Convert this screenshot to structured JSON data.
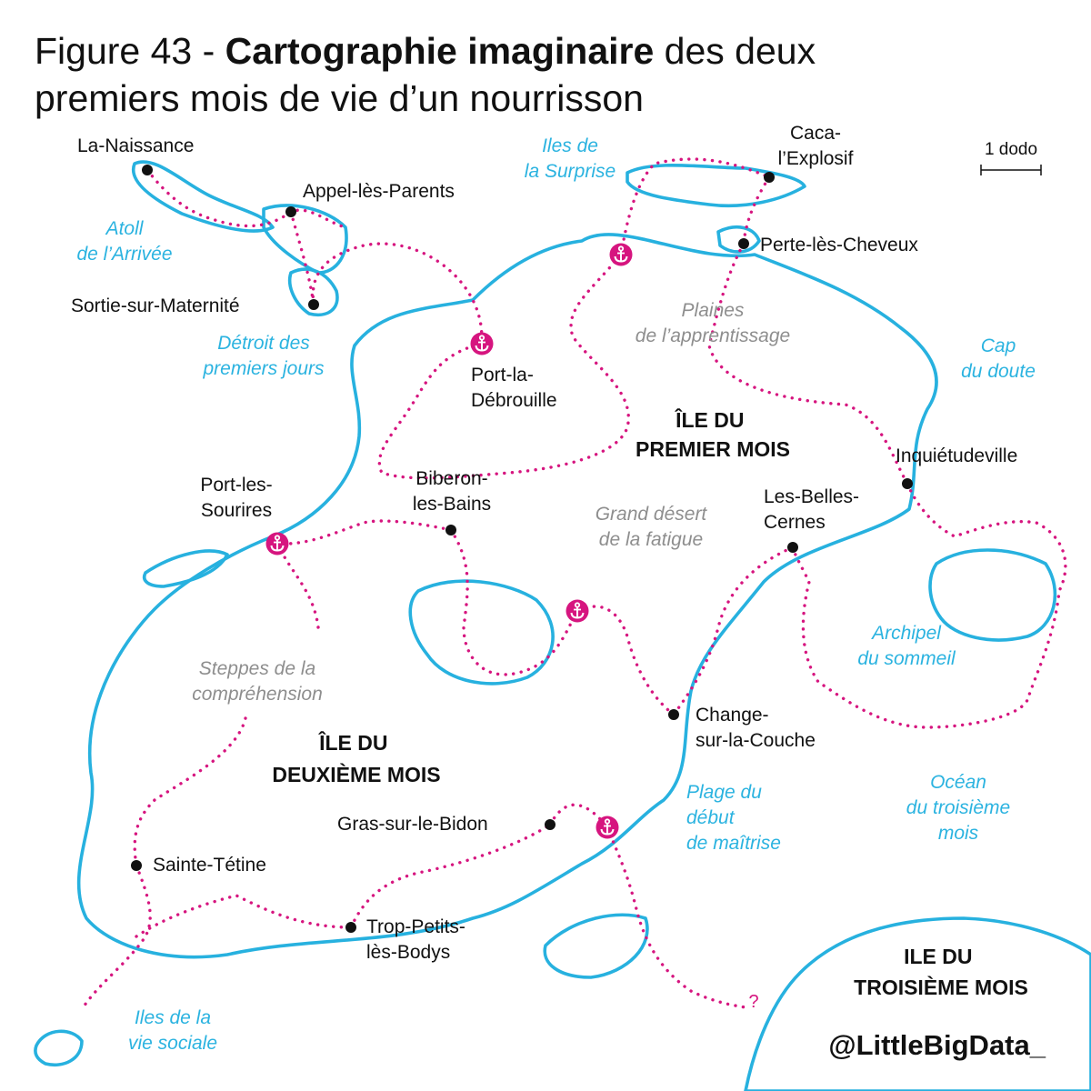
{
  "title": {
    "prefix": "Figure 43 - ",
    "bold": "Cartographie imaginaire",
    "rest": " des deux premiers mois de vie d’un nourrisson"
  },
  "scale": {
    "label": "1 dodo"
  },
  "islands": {
    "first": [
      "ÎLE DU",
      "PREMIER MOIS"
    ],
    "second": [
      "ÎLE DU",
      "DEUXIÈME MOIS"
    ],
    "third": [
      "ILE DU",
      "TROISIÈME MOIS"
    ]
  },
  "places": [
    {
      "id": "la-naissance",
      "lines": [
        "La-Naissance"
      ],
      "marker": "dot"
    },
    {
      "id": "appel-les-parents",
      "lines": [
        "Appel-lès-Parents"
      ],
      "marker": "dot"
    },
    {
      "id": "sortie-sur-maternite",
      "lines": [
        "Sortie-sur-Maternité"
      ],
      "marker": "dot"
    },
    {
      "id": "port-la-debrouille",
      "lines": [
        "Port-la-",
        "Débrouille"
      ],
      "marker": "port"
    },
    {
      "id": "caca-l-explosif",
      "lines": [
        "Caca-",
        "l’Explosif"
      ],
      "marker": "dot"
    },
    {
      "id": "perte-les-cheveux",
      "lines": [
        "Perte-lès-Cheveux"
      ],
      "marker": "dot"
    },
    {
      "id": "inquietudeville",
      "lines": [
        "Inquiétudeville"
      ],
      "marker": "dot"
    },
    {
      "id": "les-belles-cernes",
      "lines": [
        "Les-Belles-",
        "Cernes"
      ],
      "marker": "dot"
    },
    {
      "id": "port-les-sourires",
      "lines": [
        "Port-les-",
        "Sourires"
      ],
      "marker": "port"
    },
    {
      "id": "biberon-les-bains",
      "lines": [
        "Biberon-",
        "les-Bains"
      ],
      "marker": "dot"
    },
    {
      "id": "change-sur-la-couche",
      "lines": [
        "Change-",
        "sur-la-Couche"
      ],
      "marker": "dot"
    },
    {
      "id": "gras-sur-le-bidon",
      "lines": [
        "Gras-sur-le-Bidon"
      ],
      "marker": "dot"
    },
    {
      "id": "sainte-tetine",
      "lines": [
        "Sainte-Tétine"
      ],
      "marker": "dot"
    },
    {
      "id": "trop-petits-les-bodys",
      "lines": [
        "Trop-Petits-",
        "lès-Bodys"
      ],
      "marker": "dot"
    }
  ],
  "regions": [
    {
      "id": "atoll-de-l-arrivee",
      "lines": [
        "Atoll",
        "de l’Arrivée"
      ]
    },
    {
      "id": "detroit-des-premiers-jours",
      "lines": [
        "Détroit des",
        "premiers jours"
      ]
    },
    {
      "id": "iles-de-la-surprise",
      "lines": [
        "Iles de",
        "la Surprise"
      ]
    },
    {
      "id": "cap-du-doute",
      "lines": [
        "Cap",
        "du doute"
      ]
    },
    {
      "id": "archipel-du-sommeil",
      "lines": [
        "Archipel",
        "du sommeil"
      ]
    },
    {
      "id": "plage-du-debut-de-maitrise",
      "lines": [
        "Plage du",
        "début",
        "de maîtrise"
      ]
    },
    {
      "id": "ocean-du-troisieme-mois",
      "lines": [
        "Océan",
        "du troisième",
        "mois"
      ]
    },
    {
      "id": "iles-de-la-vie-sociale",
      "lines": [
        "Iles de la",
        "vie sociale"
      ]
    }
  ],
  "plains": [
    {
      "id": "plaines-de-l-apprentissage",
      "lines": [
        "Plaines",
        "de l’apprentissage"
      ]
    },
    {
      "id": "grand-desert-de-la-fatigue",
      "lines": [
        "Grand désert",
        "de la fatigue"
      ]
    },
    {
      "id": "steppes-de-la-comprehension",
      "lines": [
        "Steppes de la",
        "compréhension"
      ]
    }
  ],
  "unknown_marker": "?",
  "credit": "@LittleBigData_",
  "colors": {
    "sea_coast": "#27b1df",
    "route": "#d6157f",
    "region_text": "#2bb3e0",
    "plain_text": "#8e8e8e"
  },
  "icons": {
    "port": "anchor-icon",
    "town": "dot-icon"
  }
}
